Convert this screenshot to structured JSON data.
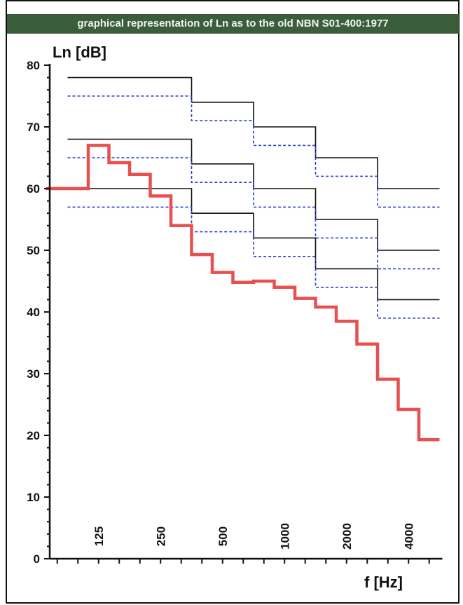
{
  "title": "graphical representation of Ln as to the old NBN S01-400:1977",
  "chart_data": {
    "type": "line",
    "ylabel": "Ln [dB]",
    "xlabel": "f [Hz]",
    "ylim": [
      0,
      80
    ],
    "yticks": [
      0,
      10,
      20,
      30,
      40,
      50,
      60,
      70,
      80
    ],
    "x_bands_third_octave": 18,
    "octave_labels": [
      "125",
      "250",
      "500",
      "1000",
      "2000",
      "4000"
    ],
    "octave_edges": [
      0,
      6,
      9,
      12,
      15,
      18
    ],
    "colors": {
      "measured": "#e8504f",
      "limit_solid": "#111111",
      "limit_dashed": "#2b3fd6",
      "banner": "#3a5e3a"
    },
    "series": [
      {
        "style": "measured",
        "values": [
          60,
          60,
          67,
          64.2,
          62.3,
          58.8,
          54,
          49.3,
          46.4,
          44.8,
          45,
          44,
          42.2,
          40.8,
          38.5,
          34.8,
          29.1,
          24.2,
          19.3
        ]
      },
      {
        "style": "limit_solid",
        "values": [
          78,
          74,
          70,
          65,
          60
        ]
      },
      {
        "style": "limit_dashed",
        "values": [
          75,
          71,
          67,
          62,
          57
        ]
      },
      {
        "style": "limit_solid",
        "values": [
          68,
          64,
          60,
          55,
          50
        ]
      },
      {
        "style": "limit_dashed",
        "values": [
          65,
          61,
          57,
          52,
          47
        ]
      },
      {
        "style": "limit_solid",
        "values": [
          60,
          56,
          52,
          47,
          42
        ]
      },
      {
        "style": "limit_dashed",
        "values": [
          57,
          53,
          49,
          44,
          39
        ]
      }
    ]
  }
}
